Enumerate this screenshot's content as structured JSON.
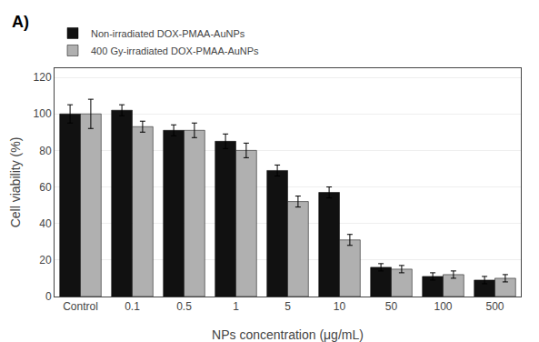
{
  "chart_data": {
    "type": "bar",
    "categories": [
      "Control",
      "0.1",
      "0.5",
      "1",
      "5",
      "10",
      "50",
      "100",
      "500"
    ],
    "series": [
      {
        "name": "Non-irradiated DOX-PMAA-AuNPs",
        "color": "#111111",
        "values": [
          100,
          102,
          91,
          85,
          69,
          57,
          16,
          11,
          9
        ],
        "errors": [
          5,
          3,
          3,
          4,
          3,
          3,
          2,
          2,
          2
        ]
      },
      {
        "name": "400 Gy-irradiated DOX-PMAA-AuNPs",
        "color": "#b0b0b0",
        "values": [
          100,
          93,
          91,
          80,
          52,
          31,
          15,
          12,
          10
        ],
        "errors": [
          8,
          3,
          4,
          4,
          3,
          3,
          2,
          2,
          2
        ]
      }
    ],
    "xlabel": "NPs concentration (μg/mL)",
    "ylabel": "Cell viability (%)",
    "ylim": [
      0,
      125
    ],
    "yticks": [
      0,
      20,
      40,
      60,
      80,
      100,
      120
    ],
    "grid": true,
    "legend": "upper left",
    "annotations": [
      "A)"
    ]
  }
}
